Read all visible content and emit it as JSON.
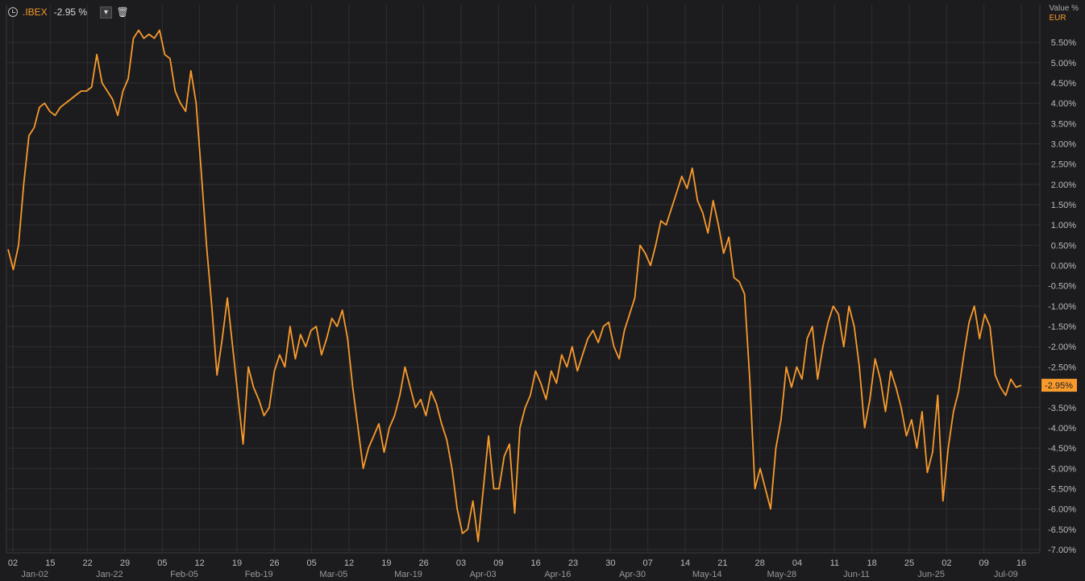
{
  "legend": {
    "symbol": ".IBEX",
    "change": "-2.95 %",
    "dropdown_icon": "chevron-down-icon",
    "delete_icon": "trash-icon"
  },
  "axis_header": {
    "unit": "Value %",
    "currency": "EUR"
  },
  "colors": {
    "background": "#1c1c1e",
    "grid": "#2f2f33",
    "line": "#f89a2c",
    "text": "#c8c8c8"
  },
  "chart_data": {
    "type": "line",
    "ylim": [
      -7.0,
      5.75
    ],
    "y_ticks": [
      "5.50%",
      "5.00%",
      "4.50%",
      "4.00%",
      "3.50%",
      "3.00%",
      "2.50%",
      "2.00%",
      "1.50%",
      "1.00%",
      "0.50%",
      "0.00%",
      "-0.50%",
      "-1.00%",
      "-1.50%",
      "-2.00%",
      "-2.50%",
      "-3.00%",
      "-3.50%",
      "-4.00%",
      "-4.50%",
      "-5.00%",
      "-5.50%",
      "-6.00%",
      "-6.50%",
      "-7.00%"
    ],
    "x_ticks_top": [
      "02",
      "15",
      "22",
      "29",
      "05",
      "12",
      "19",
      "26",
      "05",
      "12",
      "19",
      "26",
      "03",
      "09",
      "16",
      "23",
      "30",
      "07",
      "14",
      "21",
      "28",
      "04",
      "11",
      "18",
      "25",
      "02",
      "09",
      "16"
    ],
    "x_ticks_bottom": [
      "Jan-02",
      "Jan-22",
      "Feb-05",
      "Feb-19",
      "Mar-05",
      "Mar-19",
      "Apr-03",
      "Apr-16",
      "Apr-30",
      "May-14",
      "May-28",
      "Jun-11",
      "Jun-25",
      "Jul-09"
    ],
    "last_value_label": "-2.95%",
    "grid": true,
    "series": [
      {
        "values": [
          0.4,
          -0.1,
          0.5,
          2.0,
          3.2,
          3.4,
          3.9,
          4.0,
          3.8,
          3.7,
          3.9,
          4.0,
          4.1,
          4.2,
          4.3,
          4.3,
          4.4,
          5.2,
          4.5,
          4.3,
          4.1,
          3.7,
          4.3,
          4.6,
          5.6,
          5.8,
          5.6,
          5.7,
          5.6,
          5.8,
          5.2,
          5.1,
          4.3,
          4.0,
          3.8,
          4.8,
          4.0,
          2.3,
          0.5,
          -1.0,
          -2.7,
          -1.8,
          -0.8,
          -2.0,
          -3.2,
          -4.4,
          -2.5,
          -3.0,
          -3.3,
          -3.7,
          -3.5,
          -2.6,
          -2.2,
          -2.5,
          -1.5,
          -2.3,
          -1.7,
          -2.0,
          -1.6,
          -1.5,
          -2.2,
          -1.8,
          -1.3,
          -1.5,
          -1.1,
          -1.8,
          -3.0,
          -4.0,
          -5.0,
          -4.5,
          -4.2,
          -3.9,
          -4.6,
          -4.0,
          -3.7,
          -3.2,
          -2.5,
          -3.0,
          -3.5,
          -3.3,
          -3.7,
          -3.1,
          -3.4,
          -3.9,
          -4.3,
          -5.0,
          -6.0,
          -6.6,
          -6.5,
          -5.8,
          -6.8,
          -5.5,
          -4.2,
          -5.5,
          -5.5,
          -4.7,
          -4.4,
          -6.1,
          -4.0,
          -3.5,
          -3.2,
          -2.6,
          -2.9,
          -3.3,
          -2.6,
          -2.9,
          -2.2,
          -2.5,
          -2.0,
          -2.6,
          -2.2,
          -1.8,
          -1.6,
          -1.9,
          -1.5,
          -1.4,
          -2.0,
          -2.3,
          -1.6,
          -1.2,
          -0.8,
          0.5,
          0.3,
          0.0,
          0.5,
          1.1,
          1.0,
          1.4,
          1.8,
          2.2,
          1.9,
          2.4,
          1.6,
          1.3,
          0.8,
          1.6,
          1.0,
          0.3,
          0.7,
          -0.3,
          -0.4,
          -0.7,
          -2.8,
          -5.5,
          -5.0,
          -5.5,
          -6.0,
          -4.5,
          -3.8,
          -2.5,
          -3.0,
          -2.5,
          -2.8,
          -1.8,
          -1.5,
          -2.8,
          -2.0,
          -1.4,
          -1.0,
          -1.2,
          -2.0,
          -1.0,
          -1.5,
          -2.5,
          -4.0,
          -3.3,
          -2.3,
          -2.8,
          -3.6,
          -2.6,
          -3.0,
          -3.5,
          -4.2,
          -3.8,
          -4.5,
          -3.6,
          -5.1,
          -4.6,
          -3.2,
          -5.8,
          -4.5,
          -3.6,
          -3.1,
          -2.2,
          -1.4,
          -1.0,
          -1.8,
          -1.2,
          -1.5,
          -2.7,
          -3.0,
          -3.2,
          -2.8,
          -3.0,
          -2.95
        ]
      }
    ]
  }
}
